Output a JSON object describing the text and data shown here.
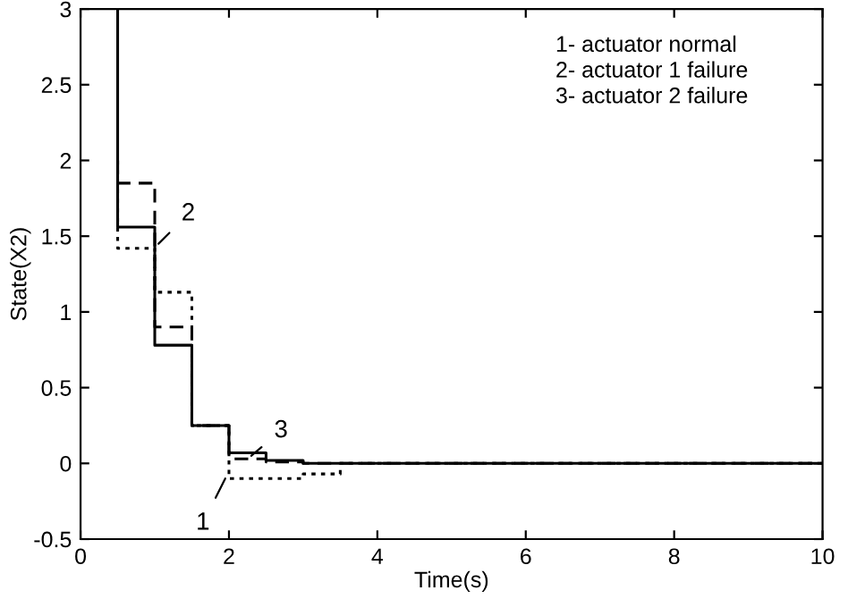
{
  "chart_data": {
    "type": "step",
    "xlabel": "Time(s)",
    "ylabel": "State(X2)",
    "series": [
      {
        "color": "#000000",
        "line_style": "solid",
        "x": [
          0.5,
          0.5,
          1,
          1.5,
          2,
          2.5,
          3,
          10
        ],
        "values": [
          3,
          1.56,
          0.78,
          0.25,
          0.07,
          0.02,
          0,
          0
        ]
      },
      {
        "color": "#000000",
        "line_style": "dashed",
        "x": [
          0.5,
          0.5,
          1,
          1.5,
          2,
          2.5,
          3,
          10
        ],
        "values": [
          2.0,
          1.85,
          0.9,
          0.25,
          0.03,
          0.01,
          0,
          0
        ]
      },
      {
        "color": "#000000",
        "line_style": "dotted",
        "x": [
          0.5,
          0.5,
          1,
          1.5,
          2,
          3,
          3.5,
          10
        ],
        "values": [
          2.0,
          1.42,
          1.13,
          0.25,
          -0.1,
          -0.07,
          0,
          0
        ]
      }
    ],
    "xlim": [
      0,
      10
    ],
    "ylim": [
      -0.5,
      3
    ],
    "xticks": [
      0,
      2,
      4,
      6,
      8,
      10
    ],
    "yticks": [
      -0.5,
      0,
      0.5,
      1,
      1.5,
      2,
      2.5,
      3
    ],
    "grid": false,
    "legend": false,
    "annotations": [
      {
        "text": "2",
        "x": 1.05,
        "y": 1.45
      },
      {
        "text": "3",
        "x": 2.3,
        "y": 0.05
      },
      {
        "text": "1",
        "x": 1.95,
        "y": -0.1
      },
      "1- actuator normal\n2- actuator 1 failure\n3- actuator 2 failure"
    ]
  }
}
